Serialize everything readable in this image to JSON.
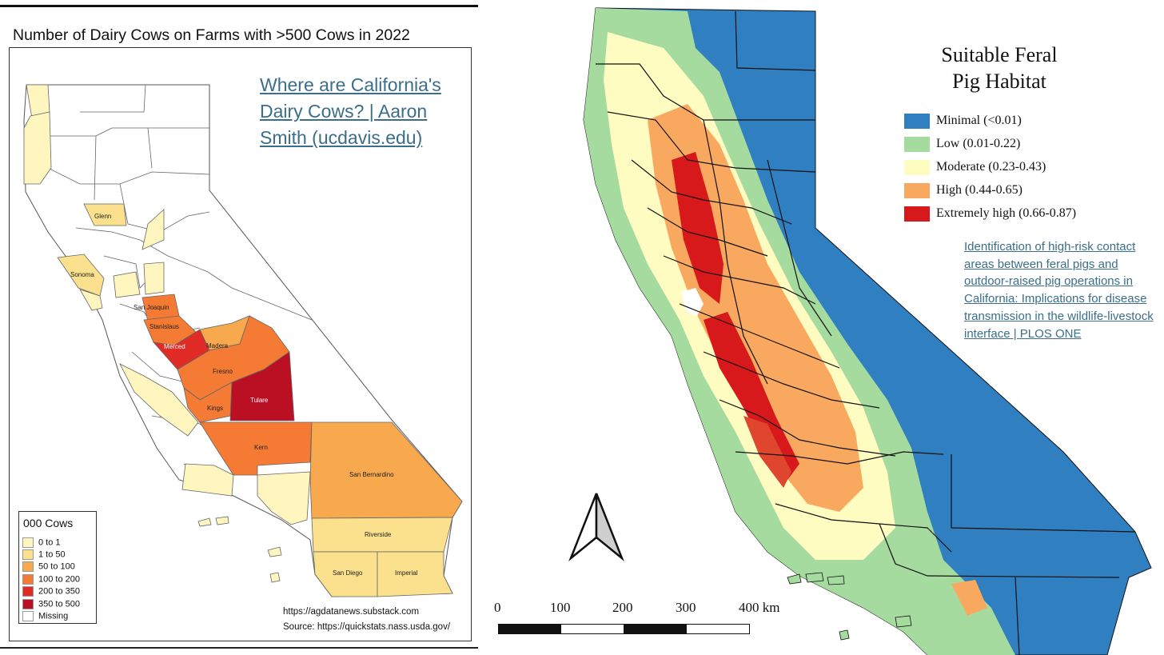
{
  "left_panel": {
    "title": "Number of Dairy Cows on Farms with >500 Cows in 2022",
    "link_text": "Where are California's Dairy Cows? | Aaron Smith (ucdavis.edu)",
    "legend": {
      "title": "000 Cows",
      "items": [
        {
          "label": "0 to 1",
          "color": "#fff6bf"
        },
        {
          "label": "1 to 50",
          "color": "#fbe08d"
        },
        {
          "label": "50 to 100",
          "color": "#f9a94d"
        },
        {
          "label": "100 to 200",
          "color": "#f57a33"
        },
        {
          "label": "200 to 350",
          "color": "#e12b26"
        },
        {
          "label": "350 to 500",
          "color": "#bb0f24"
        },
        {
          "label": "Missing",
          "color": "#ffffff"
        }
      ]
    },
    "counties": {
      "glenn": "Glenn",
      "sonoma": "Sonoma",
      "san_joaquin": "San Joaquin",
      "stanislaus": "Stanislaus",
      "merced": "Merced",
      "madera": "Madera",
      "fresno": "Fresno",
      "kings": "Kings",
      "tulare": "Tulare",
      "kern": "Kern",
      "san_bernardino": "San Bernardino",
      "riverside": "Riverside",
      "san_diego": "San Diego",
      "imperial": "Imperial"
    },
    "source_lines": [
      "https://agdatanews.substack.com",
      "Source: https://quickstats.nass.usda.gov/"
    ]
  },
  "right_panel": {
    "title_line1": "Suitable Feral",
    "title_line2": "Pig Habitat",
    "legend": [
      {
        "label": "Minimal (<0.01)",
        "color": "#2f7fc1"
      },
      {
        "label": "Low (0.01-0.22)",
        "color": "#a6dba0"
      },
      {
        "label": "Moderate (0.23-0.43)",
        "color": "#fefcc0"
      },
      {
        "label": "High (0.44-0.65)",
        "color": "#f9a95f"
      },
      {
        "label": "Extremely high (0.66-0.87)",
        "color": "#d7191c"
      }
    ],
    "link_text": "Identification of high-risk contact areas between feral pigs and outdoor-raised pig operations in California: Implications for disease transmission in the wildlife-livestock interface | PLOS ONE",
    "scale_labels": [
      "0",
      "100",
      "200",
      "300",
      "400 km"
    ]
  }
}
